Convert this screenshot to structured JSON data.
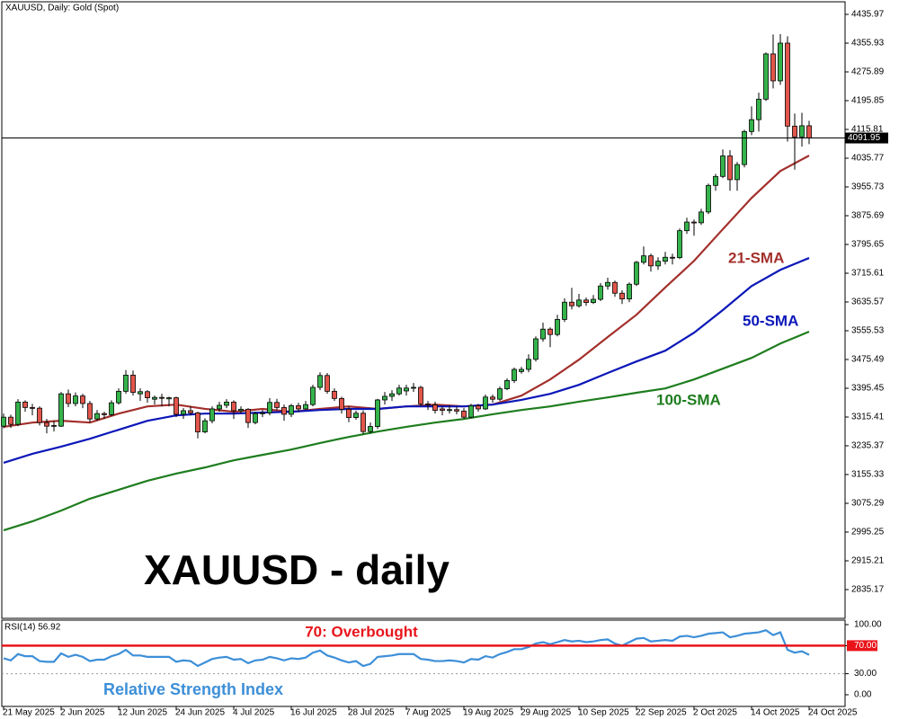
{
  "chart_data": [
    {
      "type": "candlestick",
      "title": "XAUUSD, Daily:  Gold (Spot)",
      "subtitle": "XAUUSD - daily",
      "categories": [
        "21 May 2025",
        null,
        null,
        null,
        null,
        null,
        null,
        null,
        "2 Jun 2025",
        null,
        null,
        null,
        null,
        null,
        null,
        null,
        "12 Jun 2025",
        null,
        null,
        null,
        null,
        null,
        null,
        null,
        "24 Jun 2025",
        null,
        null,
        null,
        null,
        null,
        null,
        null,
        "4 Jul 2025",
        null,
        null,
        null,
        null,
        null,
        null,
        null,
        "16 Jul 2025",
        null,
        null,
        null,
        null,
        null,
        null,
        null,
        "28 Jul 2025",
        null,
        null,
        null,
        null,
        null,
        null,
        null,
        "7 Aug 2025",
        null,
        null,
        null,
        null,
        null,
        null,
        null,
        "19 Aug 2025",
        null,
        null,
        null,
        null,
        null,
        null,
        null,
        "29 Aug 2025",
        null,
        null,
        null,
        null,
        null,
        null,
        null,
        "10 Sep 2025",
        null,
        null,
        null,
        null,
        null,
        null,
        null,
        "22 Sep 2025",
        null,
        null,
        null,
        null,
        null,
        null,
        null,
        "2 Oct 2025",
        null,
        null,
        null,
        null,
        null,
        null,
        null,
        "14 Oct 2025",
        null,
        null,
        null,
        null,
        null,
        null,
        null,
        "24 Oct 2025"
      ],
      "candles": [
        [
          3290,
          3325,
          3284,
          3315
        ],
        [
          3315,
          3322,
          3285,
          3295
        ],
        [
          3295,
          3365,
          3290,
          3357
        ],
        [
          3357,
          3362,
          3330,
          3342
        ],
        [
          3342,
          3352,
          3320,
          3340
        ],
        [
          3340,
          3345,
          3292,
          3300
        ],
        [
          3300,
          3310,
          3270,
          3290
        ],
        [
          3292,
          3305,
          3275,
          3290
        ],
        [
          3290,
          3385,
          3288,
          3380
        ],
        [
          3380,
          3392,
          3343,
          3353
        ],
        [
          3353,
          3384,
          3345,
          3374
        ],
        [
          3374,
          3380,
          3340,
          3353
        ],
        [
          3353,
          3360,
          3300,
          3310
        ],
        [
          3310,
          3335,
          3305,
          3325
        ],
        [
          3325,
          3330,
          3310,
          3322
        ],
        [
          3322,
          3362,
          3318,
          3355
        ],
        [
          3355,
          3395,
          3350,
          3387
        ],
        [
          3387,
          3446,
          3380,
          3432
        ],
        [
          3432,
          3445,
          3375,
          3384
        ],
        [
          3380,
          3395,
          3360,
          3386
        ],
        [
          3386,
          3390,
          3355,
          3369
        ],
        [
          3365,
          3375,
          3350,
          3370
        ],
        [
          3370,
          3380,
          3345,
          3368
        ],
        [
          3366,
          3372,
          3345,
          3369
        ],
        [
          3369,
          3372,
          3315,
          3323
        ],
        [
          3323,
          3340,
          3310,
          3333
        ],
        [
          3333,
          3345,
          3320,
          3327
        ],
        [
          3327,
          3330,
          3256,
          3274
        ],
        [
          3274,
          3312,
          3270,
          3305
        ],
        [
          3305,
          3345,
          3298,
          3338
        ],
        [
          3338,
          3358,
          3330,
          3348
        ],
        [
          3348,
          3365,
          3340,
          3357
        ],
        [
          3357,
          3362,
          3310,
          3333
        ],
        [
          3333,
          3345,
          3325,
          3337
        ],
        [
          3337,
          3340,
          3285,
          3300
        ],
        [
          3300,
          3330,
          3295,
          3325
        ],
        [
          3325,
          3335,
          3315,
          3327
        ],
        [
          3327,
          3368,
          3320,
          3356
        ],
        [
          3356,
          3366,
          3335,
          3342
        ],
        [
          3342,
          3350,
          3305,
          3323
        ],
        [
          3323,
          3352,
          3315,
          3347
        ],
        [
          3347,
          3355,
          3330,
          3338
        ],
        [
          3338,
          3360,
          3335,
          3350
        ],
        [
          3350,
          3405,
          3345,
          3398
        ],
        [
          3398,
          3440,
          3390,
          3431
        ],
        [
          3431,
          3438,
          3380,
          3387
        ],
        [
          3387,
          3395,
          3360,
          3367
        ],
        [
          3367,
          3372,
          3325,
          3337
        ],
        [
          3337,
          3345,
          3301,
          3314
        ],
        [
          3314,
          3333,
          3308,
          3326
        ],
        [
          3326,
          3334,
          3268,
          3275
        ],
        [
          3275,
          3300,
          3270,
          3289
        ],
        [
          3289,
          3366,
          3282,
          3363
        ],
        [
          3363,
          3385,
          3350,
          3373
        ],
        [
          3373,
          3390,
          3360,
          3380
        ],
        [
          3380,
          3405,
          3375,
          3396
        ],
        [
          3388,
          3405,
          3375,
          3396
        ],
        [
          3396,
          3410,
          3385,
          3398
        ],
        [
          3398,
          3402,
          3345,
          3352
        ],
        [
          3352,
          3360,
          3335,
          3349
        ],
        [
          3349,
          3358,
          3325,
          3334
        ],
        [
          3338,
          3345,
          3320,
          3334
        ],
        [
          3334,
          3348,
          3325,
          3336
        ],
        [
          3336,
          3345,
          3323,
          3332
        ],
        [
          3332,
          3340,
          3311,
          3315
        ],
        [
          3315,
          3352,
          3312,
          3347
        ],
        [
          3347,
          3352,
          3330,
          3338
        ],
        [
          3338,
          3378,
          3335,
          3371
        ],
        [
          3371,
          3378,
          3355,
          3365
        ],
        [
          3365,
          3400,
          3360,
          3394
        ],
        [
          3394,
          3423,
          3390,
          3417
        ],
        [
          3417,
          3453,
          3410,
          3448
        ],
        [
          3442,
          3455,
          3436,
          3448
        ],
        [
          3448,
          3490,
          3440,
          3476
        ],
        [
          3476,
          3540,
          3470,
          3533
        ],
        [
          3533,
          3578,
          3525,
          3560
        ],
        [
          3560,
          3565,
          3510,
          3545
        ],
        [
          3545,
          3600,
          3540,
          3587
        ],
        [
          3587,
          3646,
          3580,
          3635
        ],
        [
          3635,
          3675,
          3615,
          3625
        ],
        [
          3625,
          3658,
          3620,
          3641
        ],
        [
          3641,
          3648,
          3625,
          3634
        ],
        [
          3634,
          3655,
          3630,
          3643
        ],
        [
          3643,
          3688,
          3638,
          3680
        ],
        [
          3680,
          3703,
          3670,
          3690
        ],
        [
          3690,
          3695,
          3650,
          3660
        ],
        [
          3660,
          3668,
          3630,
          3644
        ],
        [
          3644,
          3690,
          3635,
          3685
        ],
        [
          3685,
          3750,
          3680,
          3746
        ],
        [
          3746,
          3790,
          3740,
          3764
        ],
        [
          3764,
          3770,
          3720,
          3736
        ],
        [
          3736,
          3760,
          3725,
          3749
        ],
        [
          3749,
          3775,
          3740,
          3760
        ],
        [
          3760,
          3770,
          3740,
          3759
        ],
        [
          3759,
          3840,
          3755,
          3834
        ],
        [
          3834,
          3870,
          3825,
          3858
        ],
        [
          3858,
          3865,
          3820,
          3856
        ],
        [
          3856,
          3895,
          3850,
          3886
        ],
        [
          3886,
          3965,
          3880,
          3960
        ],
        [
          3960,
          3992,
          3945,
          3985
        ],
        [
          3985,
          4060,
          3980,
          4042
        ],
        [
          4042,
          4058,
          3945,
          3976
        ],
        [
          3976,
          4025,
          3945,
          4018
        ],
        [
          4018,
          4115,
          4010,
          4110
        ],
        [
          4110,
          4180,
          4100,
          4143
        ],
        [
          4143,
          4218,
          4110,
          4200
        ],
        [
          4200,
          4330,
          4195,
          4326
        ],
        [
          4326,
          4380,
          4230,
          4251
        ],
        [
          4251,
          4381,
          4240,
          4356
        ],
        [
          4356,
          4375,
          4082,
          4125
        ],
        [
          4125,
          4160,
          4004,
          4095
        ],
        [
          4095,
          4162,
          4068,
          4126
        ],
        [
          4126,
          4140,
          4075,
          4091.95
        ]
      ],
      "up_color": "#34b34a",
      "down_color": "#e2554b",
      "overlays": [
        {
          "name": "21-SMA",
          "color": "#a3302c",
          "x": [
            0,
            4,
            8,
            12,
            16,
            20,
            24,
            28,
            32,
            36,
            40,
            44,
            48,
            52,
            56,
            60,
            64,
            68,
            72,
            76,
            80,
            84,
            88,
            92,
            96,
            100,
            104,
            108,
            112
          ],
          "values": [
            3288,
            3300,
            3305,
            3300,
            3325,
            3345,
            3350,
            3338,
            3330,
            3338,
            3330,
            3338,
            3345,
            3338,
            3345,
            3350,
            3345,
            3350,
            3375,
            3420,
            3475,
            3538,
            3600,
            3676,
            3750,
            3838,
            3925,
            4000,
            4043
          ]
        },
        {
          "name": "50-SMA",
          "color": "#0b17b8",
          "x": [
            0,
            4,
            8,
            12,
            16,
            20,
            24,
            28,
            32,
            36,
            40,
            44,
            48,
            52,
            56,
            60,
            64,
            68,
            72,
            76,
            80,
            84,
            88,
            92,
            96,
            100,
            104,
            108,
            112
          ],
          "values": [
            3188,
            3213,
            3233,
            3255,
            3280,
            3305,
            3320,
            3325,
            3325,
            3328,
            3330,
            3335,
            3338,
            3338,
            3345,
            3345,
            3345,
            3350,
            3363,
            3380,
            3405,
            3438,
            3470,
            3500,
            3550,
            3613,
            3680,
            3725,
            3758
          ]
        },
        {
          "name": "100-SMA",
          "color": "#1e7d1e",
          "x": [
            0,
            4,
            8,
            12,
            16,
            20,
            24,
            28,
            32,
            36,
            40,
            44,
            48,
            52,
            56,
            60,
            64,
            68,
            72,
            76,
            80,
            84,
            88,
            92,
            96,
            100,
            104,
            108,
            112
          ],
          "values": [
            3000,
            3025,
            3055,
            3088,
            3113,
            3138,
            3158,
            3175,
            3195,
            3210,
            3225,
            3243,
            3260,
            3275,
            3288,
            3300,
            3310,
            3323,
            3335,
            3345,
            3358,
            3370,
            3383,
            3395,
            3420,
            3450,
            3480,
            3520,
            3553
          ]
        }
      ],
      "current_price": 4091.95,
      "ylim": [
        2755.13,
        4470.99
      ],
      "yticks": [
        4435.97,
        4355.93,
        4275.89,
        4195.85,
        4115.81,
        4035.77,
        3955.73,
        3875.69,
        3795.65,
        3715.61,
        3635.57,
        3555.53,
        3475.49,
        3395.45,
        3315.41,
        3235.37,
        3155.33,
        3075.29,
        2995.25,
        2915.21,
        2835.17
      ]
    },
    {
      "type": "line",
      "title": "RSI(14) 56.92",
      "subtitle": "Relative Strength Index",
      "color": "#3d8fd8",
      "values": [
        52,
        49,
        58,
        55,
        55,
        48,
        47,
        47,
        59,
        54,
        57,
        54,
        48,
        50,
        50,
        55,
        58,
        64,
        56,
        56,
        54,
        54,
        54,
        54,
        47,
        49,
        48,
        41,
        46,
        51,
        53,
        54,
        50,
        51,
        45,
        49,
        50,
        54,
        52,
        49,
        52,
        51,
        53,
        60,
        63,
        56,
        53,
        49,
        46,
        48,
        41,
        44,
        54,
        55,
        56,
        58,
        58,
        58,
        51,
        50,
        48,
        48,
        49,
        48,
        46,
        51,
        50,
        55,
        53,
        58,
        61,
        65,
        65,
        68,
        73,
        75,
        72,
        75,
        78,
        76,
        77,
        75,
        76,
        78,
        79,
        73,
        70,
        75,
        80,
        81,
        76,
        77,
        78,
        77,
        83,
        84,
        82,
        84,
        87,
        88,
        89,
        82,
        84,
        87,
        88,
        89,
        92,
        85,
        89,
        64,
        60,
        62,
        56.92
      ],
      "overbought": {
        "value": 70,
        "label": "70: Overbought",
        "color": "#e8141a"
      },
      "oversold": 30,
      "ylim": [
        -16.67,
        106.41
      ],
      "yticks": [
        {
          "value": 100,
          "label": "100.00"
        },
        {
          "value": 70,
          "label": "70.00"
        },
        {
          "value": 30,
          "label": "30.00"
        },
        {
          "value": 0,
          "label": "0.00"
        }
      ]
    }
  ]
}
